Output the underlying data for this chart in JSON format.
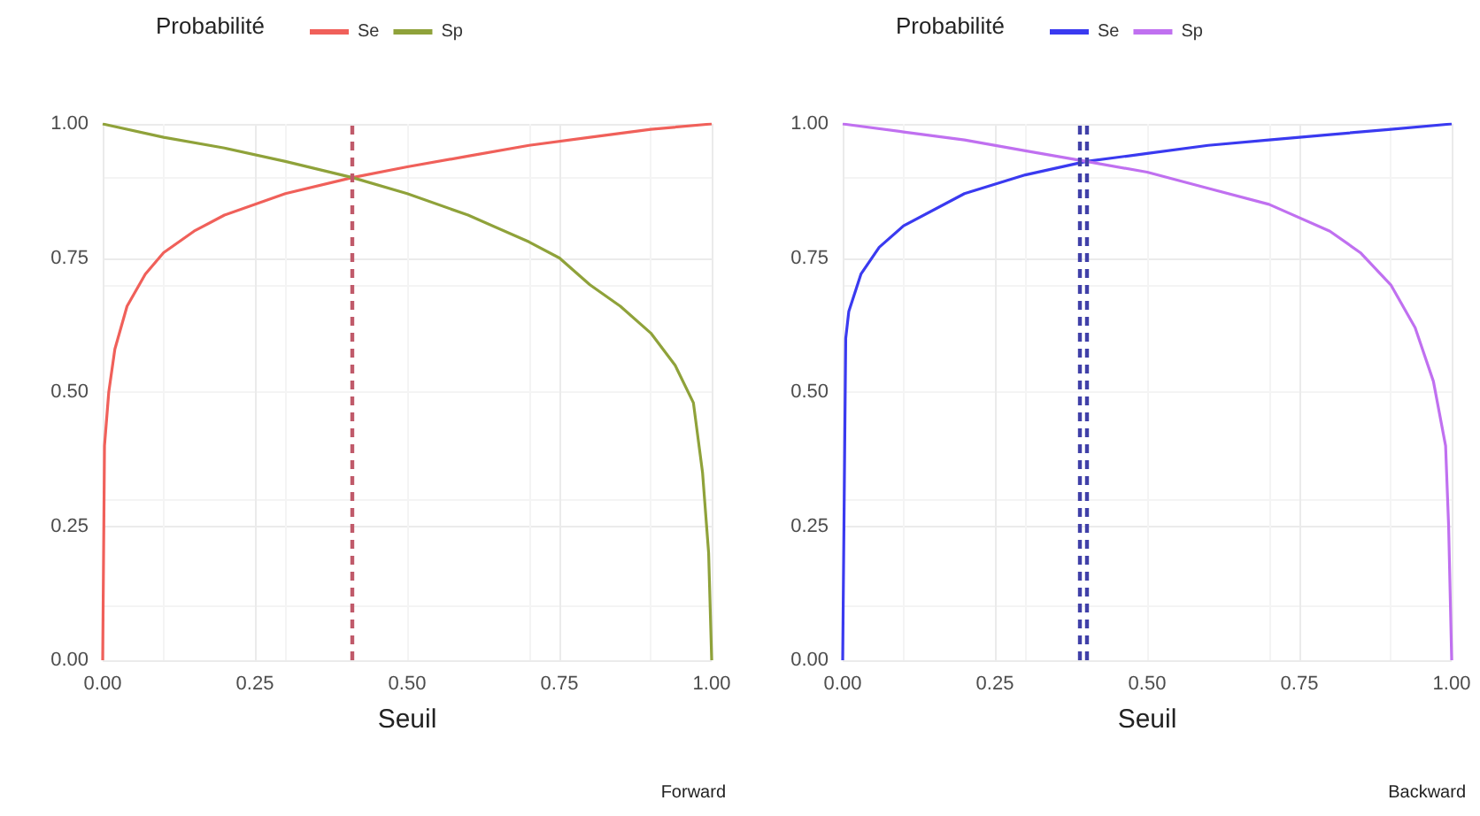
{
  "chart_data": [
    {
      "type": "line",
      "xlabel": "Seuil",
      "legend_title": "Probabilité",
      "legend": "top",
      "grid": true,
      "annotations": [
        "Forward"
      ],
      "xlim": [
        0,
        1
      ],
      "ylim": [
        0,
        1
      ],
      "xticks": [
        {
          "value": 0,
          "label": "0.00"
        },
        {
          "value": 0.25,
          "label": "0.25"
        },
        {
          "value": 0.5,
          "label": "0.50"
        },
        {
          "value": 0.75,
          "label": "0.75"
        },
        {
          "value": 1,
          "label": "1.00"
        }
      ],
      "yticks": [
        {
          "value": 0,
          "label": "0.00"
        },
        {
          "value": 0.25,
          "label": "0.25"
        },
        {
          "value": 0.5,
          "label": "0.50"
        },
        {
          "value": 0.75,
          "label": "0.75"
        },
        {
          "value": 1,
          "label": "1.00"
        }
      ],
      "ref_lines": [
        {
          "axis": "x",
          "value": 0.41,
          "color": "#c05a6a",
          "line_style": "dashed"
        }
      ],
      "series": [
        {
          "name": "Se",
          "color": "#f0605a",
          "x": [
            0,
            0.003,
            0.01,
            0.02,
            0.04,
            0.07,
            0.1,
            0.15,
            0.2,
            0.3,
            0.41,
            0.5,
            0.6,
            0.7,
            0.8,
            0.9,
            1
          ],
          "values": [
            0,
            0.4,
            0.5,
            0.58,
            0.66,
            0.72,
            0.76,
            0.8,
            0.83,
            0.87,
            0.9,
            0.92,
            0.94,
            0.96,
            0.975,
            0.99,
            1
          ]
        },
        {
          "name": "Sp",
          "color": "#8fa23a",
          "x": [
            0,
            0.1,
            0.2,
            0.3,
            0.41,
            0.5,
            0.6,
            0.7,
            0.75,
            0.8,
            0.85,
            0.9,
            0.94,
            0.97,
            0.985,
            0.995,
            1
          ],
          "values": [
            1,
            0.975,
            0.955,
            0.93,
            0.9,
            0.87,
            0.83,
            0.78,
            0.75,
            0.7,
            0.66,
            0.61,
            0.55,
            0.48,
            0.35,
            0.2,
            0
          ]
        }
      ]
    },
    {
      "type": "line",
      "xlabel": "Seuil",
      "legend_title": "Probabilité",
      "legend": "top",
      "grid": true,
      "annotations": [
        "Backward"
      ],
      "xlim": [
        0,
        1
      ],
      "ylim": [
        0,
        1
      ],
      "xticks": [
        {
          "value": 0,
          "label": "0.00"
        },
        {
          "value": 0.25,
          "label": "0.25"
        },
        {
          "value": 0.5,
          "label": "0.50"
        },
        {
          "value": 0.75,
          "label": "0.75"
        },
        {
          "value": 1,
          "label": "1.00"
        }
      ],
      "yticks": [
        {
          "value": 0,
          "label": "0.00"
        },
        {
          "value": 0.25,
          "label": "0.25"
        },
        {
          "value": 0.5,
          "label": "0.50"
        },
        {
          "value": 0.75,
          "label": "0.75"
        },
        {
          "value": 1,
          "label": "1.00"
        }
      ],
      "ref_lines": [
        {
          "axis": "x",
          "value": 0.385,
          "color": "#4040a8",
          "line_style": "dashed"
        },
        {
          "axis": "x",
          "value": 0.4,
          "color": "#4040a8",
          "line_style": "dashed"
        }
      ],
      "series": [
        {
          "name": "Se",
          "color": "#3a3af0",
          "x": [
            0,
            0.005,
            0.01,
            0.03,
            0.06,
            0.1,
            0.2,
            0.3,
            0.4,
            0.5,
            0.6,
            0.7,
            0.8,
            0.9,
            1
          ],
          "values": [
            0,
            0.6,
            0.65,
            0.72,
            0.77,
            0.81,
            0.87,
            0.905,
            0.93,
            0.945,
            0.96,
            0.97,
            0.98,
            0.99,
            1
          ]
        },
        {
          "name": "Sp",
          "color": "#c070f0",
          "x": [
            0,
            0.1,
            0.2,
            0.3,
            0.4,
            0.5,
            0.6,
            0.7,
            0.8,
            0.85,
            0.9,
            0.94,
            0.97,
            0.99,
            0.995,
            1
          ],
          "values": [
            1,
            0.985,
            0.97,
            0.95,
            0.93,
            0.91,
            0.88,
            0.85,
            0.8,
            0.76,
            0.7,
            0.62,
            0.52,
            0.4,
            0.25,
            0
          ]
        }
      ]
    }
  ]
}
